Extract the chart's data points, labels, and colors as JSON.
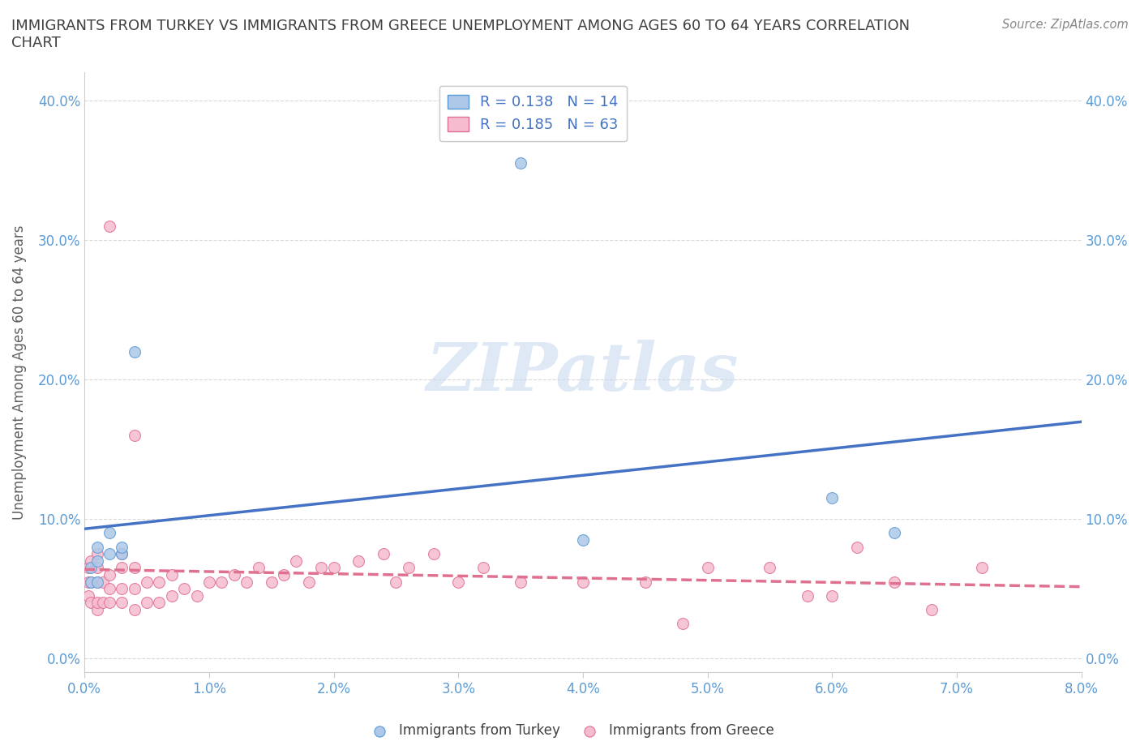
{
  "title": "IMMIGRANTS FROM TURKEY VS IMMIGRANTS FROM GREECE UNEMPLOYMENT AMONG AGES 60 TO 64 YEARS CORRELATION\nCHART",
  "source": "Source: ZipAtlas.com",
  "ylabel": "Unemployment Among Ages 60 to 64 years",
  "xlim": [
    0.0,
    0.08
  ],
  "ylim": [
    -0.01,
    0.42
  ],
  "xticks": [
    0.0,
    0.01,
    0.02,
    0.03,
    0.04,
    0.05,
    0.06,
    0.07,
    0.08
  ],
  "xticklabels": [
    "0.0%",
    "1.0%",
    "2.0%",
    "3.0%",
    "4.0%",
    "5.0%",
    "6.0%",
    "7.0%",
    "8.0%"
  ],
  "yticks": [
    0.0,
    0.1,
    0.2,
    0.3,
    0.4
  ],
  "yticklabels": [
    "0.0%",
    "10.0%",
    "20.0%",
    "30.0%",
    "40.0%"
  ],
  "turkey_color": "#adc8e8",
  "turkey_edge_color": "#5b9bd5",
  "greece_color": "#f5bcd0",
  "greece_edge_color": "#e07090",
  "turkey_line_color": "#4472c4",
  "greece_line_color": "#e07090",
  "legend_R_turkey": "R = 0.138",
  "legend_N_turkey": "N = 14",
  "legend_R_greece": "R = 0.185",
  "legend_N_greece": "N = 63",
  "turkey_x": [
    0.0005,
    0.0005,
    0.001,
    0.001,
    0.001,
    0.002,
    0.002,
    0.003,
    0.003,
    0.004,
    0.035,
    0.04,
    0.06,
    0.065
  ],
  "turkey_y": [
    0.055,
    0.065,
    0.055,
    0.07,
    0.08,
    0.075,
    0.09,
    0.075,
    0.08,
    0.22,
    0.355,
    0.085,
    0.115,
    0.09
  ],
  "greece_x": [
    0.0003,
    0.0003,
    0.0003,
    0.0005,
    0.0005,
    0.0005,
    0.001,
    0.001,
    0.001,
    0.001,
    0.001,
    0.0015,
    0.0015,
    0.002,
    0.002,
    0.002,
    0.002,
    0.003,
    0.003,
    0.003,
    0.003,
    0.004,
    0.004,
    0.004,
    0.004,
    0.005,
    0.005,
    0.006,
    0.006,
    0.007,
    0.007,
    0.008,
    0.009,
    0.01,
    0.011,
    0.012,
    0.013,
    0.014,
    0.015,
    0.016,
    0.017,
    0.018,
    0.019,
    0.02,
    0.022,
    0.024,
    0.025,
    0.026,
    0.028,
    0.03,
    0.032,
    0.035,
    0.04,
    0.045,
    0.048,
    0.05,
    0.055,
    0.058,
    0.06,
    0.062,
    0.065,
    0.068,
    0.072
  ],
  "greece_y": [
    0.045,
    0.055,
    0.065,
    0.04,
    0.055,
    0.07,
    0.035,
    0.04,
    0.055,
    0.065,
    0.075,
    0.04,
    0.055,
    0.04,
    0.05,
    0.06,
    0.31,
    0.04,
    0.05,
    0.065,
    0.075,
    0.035,
    0.05,
    0.065,
    0.16,
    0.04,
    0.055,
    0.04,
    0.055,
    0.045,
    0.06,
    0.05,
    0.045,
    0.055,
    0.055,
    0.06,
    0.055,
    0.065,
    0.055,
    0.06,
    0.07,
    0.055,
    0.065,
    0.065,
    0.07,
    0.075,
    0.055,
    0.065,
    0.075,
    0.055,
    0.065,
    0.055,
    0.055,
    0.055,
    0.025,
    0.065,
    0.065,
    0.045,
    0.045,
    0.08,
    0.055,
    0.035,
    0.065
  ],
  "watermark_text": "ZIPatlas",
  "background_color": "#ffffff",
  "grid_color": "#d8d8d8",
  "tick_label_color": "#5b9bd5",
  "title_color": "#404040",
  "marker_size": 100
}
